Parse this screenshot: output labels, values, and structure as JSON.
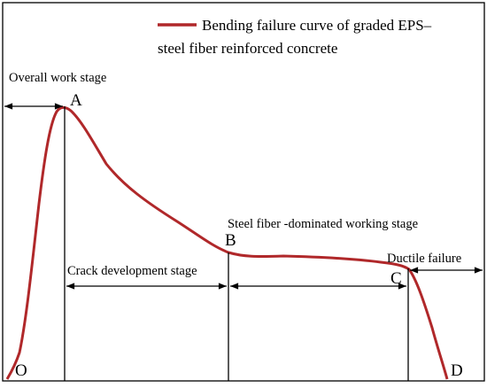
{
  "legend": {
    "line1": "Bending failure curve of graded EPS–",
    "line2": "steel fiber reinforced concrete"
  },
  "points": {
    "O": "O",
    "A": "A",
    "B": "B",
    "C": "C",
    "D": "D"
  },
  "stages": {
    "overall": "Overall work stage",
    "steel_fiber": "Steel fiber -dominated working stage",
    "crack": "Crack development stage",
    "ductile": "Ductile failure"
  }
}
